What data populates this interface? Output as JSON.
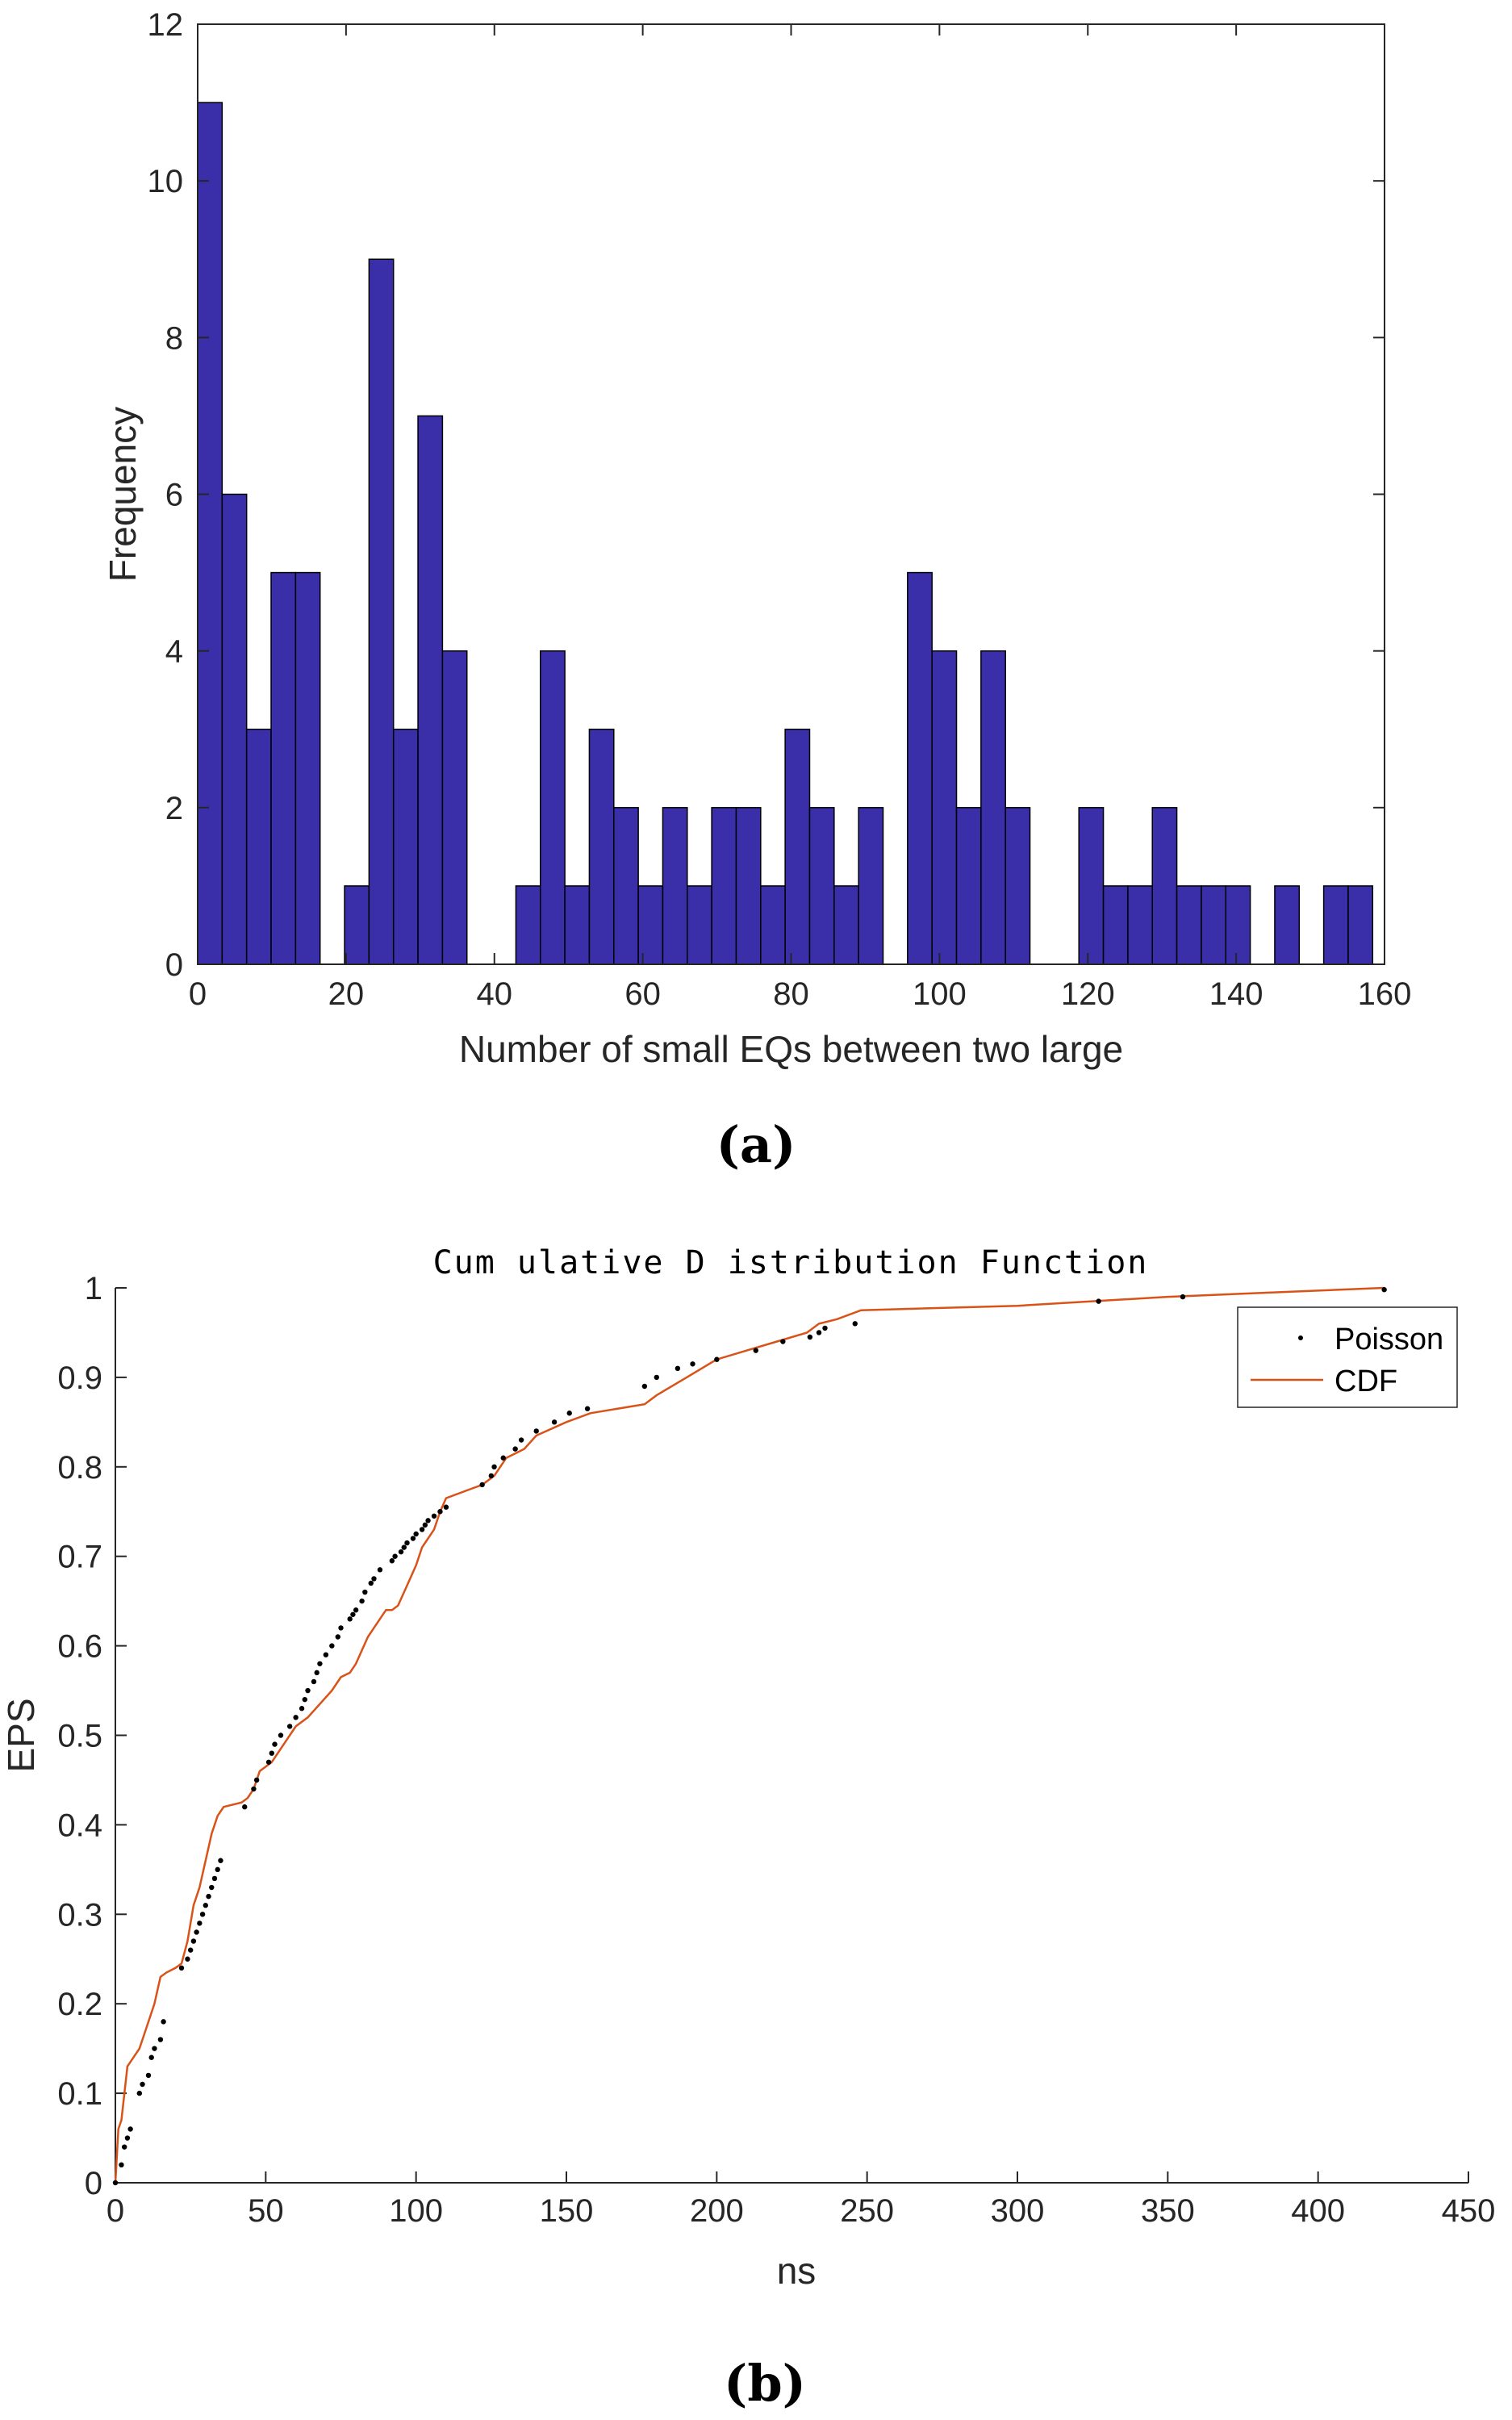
{
  "chart_data": [
    {
      "type": "bar",
      "panel_label": "(a)",
      "title": "",
      "xlabel": "Number of small EQs between two large",
      "ylabel": "Frequency",
      "xlim": [
        0,
        160
      ],
      "ylim": [
        0,
        12
      ],
      "xticks": [
        "0",
        "20",
        "40",
        "60",
        "80",
        "100",
        "120",
        "140",
        "160"
      ],
      "yticks": [
        "0",
        "2",
        "4",
        "6",
        "8",
        "10",
        "12"
      ],
      "bin_start": 0,
      "bin_width": 3.3,
      "values": [
        11,
        6,
        3,
        5,
        5,
        0,
        1,
        9,
        3,
        7,
        4,
        0,
        0,
        1,
        4,
        1,
        3,
        2,
        1,
        2,
        1,
        2,
        2,
        1,
        3,
        2,
        1,
        2,
        0,
        5,
        4,
        2,
        4,
        2,
        0,
        0,
        2,
        1,
        1,
        2,
        1,
        1,
        1,
        0,
        1,
        0,
        1,
        1
      ],
      "bar_color": "#3a2fa8"
    },
    {
      "type": "scatter",
      "panel_label": "(b)",
      "title": "Cum ulative D istribution Function",
      "xlabel": "ns",
      "ylabel": "EPS",
      "xlim": [
        0,
        450
      ],
      "ylim": [
        0,
        1
      ],
      "xticks": [
        "0",
        "50",
        "100",
        "150",
        "200",
        "250",
        "300",
        "350",
        "400",
        "450"
      ],
      "yticks": [
        "0",
        "0.1",
        "0.2",
        "0.3",
        "0.4",
        "0.5",
        "0.6",
        "0.7",
        "0.8",
        "0.9",
        "1"
      ],
      "legend": {
        "position": "top-right",
        "entries": [
          "Poisson",
          "CDF"
        ]
      },
      "series": [
        {
          "name": "Poisson",
          "style": "dots",
          "color": "#000000",
          "x": [
            0,
            2,
            3,
            4,
            5,
            8,
            9,
            11,
            12,
            13,
            15,
            16,
            22,
            24,
            25,
            26,
            27,
            28,
            29,
            30,
            31,
            32,
            33,
            34,
            35,
            43,
            46,
            47,
            51,
            52,
            53,
            55,
            58,
            60,
            62,
            63,
            64,
            66,
            67,
            68,
            70,
            72,
            74,
            75,
            78,
            79,
            80,
            82,
            83,
            85,
            86,
            88,
            92,
            93,
            95,
            96,
            97,
            99,
            100,
            102,
            103,
            104,
            106,
            108,
            110,
            122,
            125,
            126,
            129,
            133,
            135,
            140,
            146,
            151,
            157,
            176,
            180,
            187,
            192,
            200,
            213,
            222,
            231,
            234,
            236,
            246,
            327,
            355,
            422
          ],
          "y": [
            0,
            0.02,
            0.04,
            0.05,
            0.06,
            0.1,
            0.11,
            0.12,
            0.14,
            0.15,
            0.16,
            0.18,
            0.24,
            0.25,
            0.26,
            0.27,
            0.28,
            0.29,
            0.3,
            0.31,
            0.32,
            0.33,
            0.34,
            0.35,
            0.36,
            0.42,
            0.44,
            0.45,
            0.47,
            0.48,
            0.49,
            0.5,
            0.51,
            0.52,
            0.53,
            0.54,
            0.55,
            0.56,
            0.57,
            0.58,
            0.59,
            0.6,
            0.61,
            0.62,
            0.63,
            0.635,
            0.64,
            0.65,
            0.66,
            0.67,
            0.675,
            0.685,
            0.695,
            0.7,
            0.705,
            0.71,
            0.715,
            0.72,
            0.725,
            0.73,
            0.735,
            0.74,
            0.745,
            0.75,
            0.755,
            0.78,
            0.79,
            0.8,
            0.81,
            0.82,
            0.83,
            0.84,
            0.85,
            0.86,
            0.865,
            0.89,
            0.9,
            0.91,
            0.915,
            0.92,
            0.93,
            0.94,
            0.945,
            0.95,
            0.955,
            0.96,
            0.985,
            0.99,
            0.998
          ]
        },
        {
          "name": "CDF",
          "style": "line",
          "color": "#d95319",
          "x": [
            0,
            1,
            2,
            3,
            4,
            6,
            8,
            10,
            13,
            15,
            17,
            20,
            22,
            24,
            26,
            28,
            30,
            32,
            34,
            36,
            42,
            44,
            46,
            48,
            52,
            56,
            60,
            64,
            68,
            72,
            75,
            78,
            80,
            84,
            88,
            90,
            92,
            94,
            96,
            100,
            102,
            104,
            106,
            108,
            110,
            118,
            122,
            126,
            130,
            136,
            140,
            150,
            158,
            176,
            180,
            190,
            200,
            210,
            220,
            230,
            234,
            240,
            248,
            300,
            350,
            422
          ],
          "y": [
            0,
            0.06,
            0.07,
            0.1,
            0.13,
            0.14,
            0.15,
            0.17,
            0.2,
            0.23,
            0.235,
            0.24,
            0.245,
            0.27,
            0.31,
            0.33,
            0.36,
            0.39,
            0.41,
            0.42,
            0.425,
            0.43,
            0.44,
            0.46,
            0.47,
            0.49,
            0.51,
            0.52,
            0.535,
            0.55,
            0.565,
            0.57,
            0.58,
            0.61,
            0.63,
            0.64,
            0.64,
            0.645,
            0.66,
            0.69,
            0.71,
            0.72,
            0.73,
            0.75,
            0.765,
            0.775,
            0.78,
            0.79,
            0.81,
            0.82,
            0.835,
            0.85,
            0.86,
            0.87,
            0.88,
            0.9,
            0.92,
            0.93,
            0.94,
            0.95,
            0.96,
            0.965,
            0.975,
            0.98,
            0.99,
            1.0
          ]
        }
      ]
    }
  ]
}
